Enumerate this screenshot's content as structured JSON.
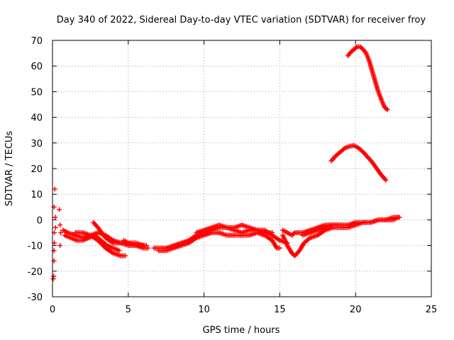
{
  "chart_data": {
    "type": "scatter",
    "title": "Day 340 of 2022, Sidereal Day-to-day VTEC variation (SDTVAR) for receiver froy",
    "xlabel": "GPS time / hours",
    "ylabel": "SDTVAR / TECUs",
    "xlim": [
      0,
      25
    ],
    "ylim": [
      -30,
      70
    ],
    "xticks": [
      0,
      5,
      10,
      15,
      20,
      25
    ],
    "yticks": [
      -30,
      -20,
      -10,
      0,
      10,
      20,
      30,
      40,
      50,
      60,
      70
    ],
    "grid": true,
    "marker": "plus",
    "color": "#ff0000",
    "series": [
      {
        "name": "scatter-points",
        "points": [
          [
            0.05,
            -23
          ],
          [
            0.08,
            -22
          ],
          [
            0.1,
            -16
          ],
          [
            0.1,
            -12
          ],
          [
            0.12,
            -9
          ],
          [
            0.12,
            -5
          ],
          [
            0.1,
            5
          ],
          [
            0.15,
            12
          ],
          [
            0.18,
            1
          ],
          [
            0.2,
            -3
          ],
          [
            0.45,
            4
          ],
          [
            0.5,
            -2
          ],
          [
            0.5,
            -10
          ],
          [
            0.55,
            -5
          ]
        ]
      },
      {
        "name": "track-a",
        "points": [
          [
            0.7,
            -4
          ],
          [
            1.0,
            -5
          ],
          [
            1.5,
            -6
          ],
          [
            2.0,
            -7
          ],
          [
            2.5,
            -6
          ],
          [
            3.0,
            -5
          ],
          [
            3.5,
            -6
          ],
          [
            4.0,
            -8
          ],
          [
            4.5,
            -9
          ],
          [
            5.0,
            -10
          ],
          [
            5.5,
            -10
          ],
          [
            6.0,
            -11
          ],
          [
            6.3,
            -11
          ]
        ]
      },
      {
        "name": "track-b",
        "points": [
          [
            0.8,
            -6
          ],
          [
            1.2,
            -7
          ],
          [
            1.6,
            -8
          ],
          [
            2.0,
            -8
          ],
          [
            2.4,
            -7
          ],
          [
            2.8,
            -6
          ],
          [
            3.2,
            -8
          ],
          [
            3.6,
            -10
          ],
          [
            4.0,
            -11
          ],
          [
            4.4,
            -12
          ]
        ]
      },
      {
        "name": "track-c",
        "points": [
          [
            1.5,
            -5
          ],
          [
            2.0,
            -5
          ],
          [
            2.5,
            -6
          ],
          [
            3.0,
            -8
          ],
          [
            3.5,
            -11
          ],
          [
            4.0,
            -13
          ],
          [
            4.5,
            -14
          ],
          [
            4.8,
            -14
          ]
        ]
      },
      {
        "name": "track-d",
        "points": [
          [
            2.7,
            -1
          ],
          [
            3.0,
            -3
          ],
          [
            3.5,
            -7
          ],
          [
            4.0,
            -9
          ],
          [
            4.5,
            -9
          ],
          [
            5.0,
            -9
          ],
          [
            5.5,
            -10
          ],
          [
            6.2,
            -10
          ]
        ]
      },
      {
        "name": "track-e",
        "points": [
          [
            4.7,
            -8
          ],
          [
            5.0,
            -9
          ],
          [
            5.5,
            -9
          ],
          [
            6.0,
            -10
          ]
        ]
      },
      {
        "name": "track-f",
        "points": [
          [
            6.7,
            -11
          ],
          [
            7.0,
            -11
          ],
          [
            7.5,
            -11
          ],
          [
            8.0,
            -10
          ],
          [
            8.5,
            -9
          ],
          [
            9.0,
            -8
          ],
          [
            9.5,
            -6
          ],
          [
            10.0,
            -5
          ],
          [
            10.5,
            -4
          ],
          [
            11.0,
            -3
          ],
          [
            11.5,
            -3
          ],
          [
            12.0,
            -4
          ],
          [
            12.5,
            -5
          ],
          [
            13.0,
            -4
          ],
          [
            13.5,
            -4
          ],
          [
            14.0,
            -4
          ],
          [
            14.5,
            -6
          ],
          [
            15.0,
            -8
          ],
          [
            15.5,
            -9
          ]
        ]
      },
      {
        "name": "track-g",
        "points": [
          [
            7.0,
            -12
          ],
          [
            7.5,
            -12
          ],
          [
            8.0,
            -11
          ],
          [
            8.5,
            -10
          ],
          [
            9.0,
            -9
          ],
          [
            9.5,
            -7
          ],
          [
            10.0,
            -6
          ],
          [
            10.5,
            -5
          ],
          [
            11.0,
            -5
          ],
          [
            11.5,
            -6
          ],
          [
            12.0,
            -6
          ],
          [
            12.5,
            -6
          ],
          [
            13.0,
            -6
          ],
          [
            13.5,
            -5
          ],
          [
            14.0,
            -6
          ],
          [
            14.5,
            -8
          ],
          [
            14.8,
            -11
          ],
          [
            15.0,
            -11
          ]
        ]
      },
      {
        "name": "track-h",
        "points": [
          [
            9.5,
            -5
          ],
          [
            10.0,
            -4
          ],
          [
            10.5,
            -3
          ],
          [
            11.0,
            -2
          ],
          [
            11.5,
            -3
          ],
          [
            12.0,
            -3
          ],
          [
            12.5,
            -2
          ],
          [
            13.0,
            -3
          ],
          [
            13.5,
            -4
          ],
          [
            14.0,
            -5
          ],
          [
            14.5,
            -5
          ]
        ]
      },
      {
        "name": "track-i",
        "points": [
          [
            15.2,
            -4
          ],
          [
            15.5,
            -5
          ],
          [
            15.8,
            -6
          ],
          [
            16.0,
            -5
          ],
          [
            16.5,
            -5
          ],
          [
            17.0,
            -4
          ],
          [
            17.5,
            -3
          ],
          [
            18.0,
            -2
          ],
          [
            18.5,
            -2
          ],
          [
            19.0,
            -2
          ],
          [
            19.5,
            -2
          ],
          [
            20.0,
            -1
          ],
          [
            20.5,
            -1
          ],
          [
            21.0,
            -1
          ],
          [
            21.5,
            0
          ],
          [
            22.0,
            0
          ],
          [
            22.5,
            0
          ],
          [
            22.8,
            1
          ]
        ]
      },
      {
        "name": "track-j",
        "points": [
          [
            15.2,
            -6
          ],
          [
            15.5,
            -10
          ],
          [
            15.8,
            -13
          ],
          [
            16.0,
            -14
          ],
          [
            16.3,
            -12
          ],
          [
            16.6,
            -9
          ],
          [
            17.0,
            -7
          ],
          [
            17.5,
            -6
          ],
          [
            18.0,
            -4
          ],
          [
            18.5,
            -3
          ],
          [
            19.0,
            -3
          ],
          [
            19.5,
            -3
          ],
          [
            20.0,
            -2
          ],
          [
            20.5,
            -1
          ],
          [
            21.0,
            -1
          ],
          [
            21.5,
            0
          ],
          [
            22.0,
            0
          ],
          [
            22.5,
            1
          ],
          [
            22.9,
            1
          ]
        ]
      },
      {
        "name": "track-k",
        "points": [
          [
            16.5,
            -6
          ],
          [
            17.0,
            -5
          ],
          [
            17.5,
            -4
          ],
          [
            18.0,
            -3
          ],
          [
            18.5,
            -2
          ],
          [
            19.0,
            -2
          ]
        ]
      },
      {
        "name": "arc-low",
        "points": [
          [
            18.4,
            23
          ],
          [
            18.7,
            25
          ],
          [
            19.0,
            26.5
          ],
          [
            19.3,
            28
          ],
          [
            19.6,
            28.7
          ],
          [
            19.9,
            29
          ],
          [
            20.2,
            28
          ],
          [
            20.5,
            26.5
          ],
          [
            20.8,
            24.5
          ],
          [
            21.1,
            22.5
          ],
          [
            21.4,
            20
          ],
          [
            21.7,
            17.5
          ],
          [
            22.0,
            15.5
          ]
        ]
      },
      {
        "name": "arc-high",
        "points": [
          [
            19.5,
            64
          ],
          [
            19.7,
            65.5
          ],
          [
            19.9,
            66.5
          ],
          [
            20.1,
            67.5
          ],
          [
            20.3,
            67.5
          ],
          [
            20.5,
            66.5
          ],
          [
            20.7,
            65
          ],
          [
            20.9,
            62
          ],
          [
            21.1,
            58
          ],
          [
            21.3,
            54
          ],
          [
            21.5,
            50
          ],
          [
            21.7,
            47
          ],
          [
            21.9,
            44
          ],
          [
            22.1,
            43
          ]
        ]
      }
    ]
  }
}
